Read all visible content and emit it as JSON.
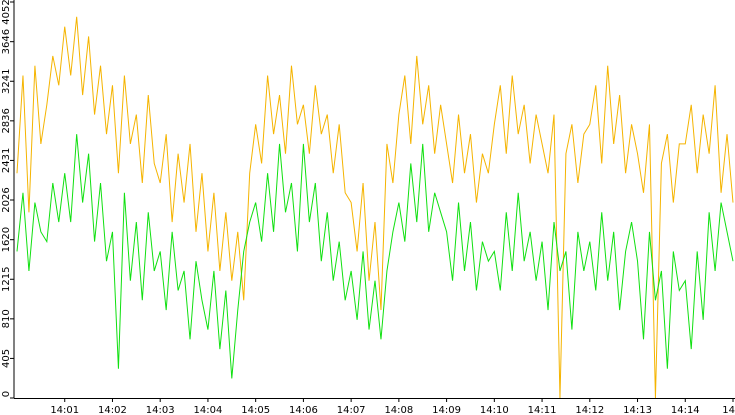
{
  "chart_data": {
    "type": "line",
    "categories": [
      null,
      null,
      null,
      null,
      null,
      null,
      null,
      null,
      "14:01",
      null,
      null,
      null,
      null,
      null,
      null,
      null,
      "14:02",
      null,
      null,
      null,
      null,
      null,
      null,
      null,
      "14:03",
      null,
      null,
      null,
      null,
      null,
      null,
      null,
      "14:04",
      null,
      null,
      null,
      null,
      null,
      null,
      null,
      "14:05",
      null,
      null,
      null,
      null,
      null,
      null,
      null,
      "14:06",
      null,
      null,
      null,
      null,
      null,
      null,
      null,
      "14:07",
      null,
      null,
      null,
      null,
      null,
      null,
      null,
      "14:08",
      null,
      null,
      null,
      null,
      null,
      null,
      null,
      "14:09",
      null,
      null,
      null,
      null,
      null,
      null,
      null,
      "14:10",
      null,
      null,
      null,
      null,
      null,
      null,
      null,
      "14:11",
      null,
      null,
      null,
      null,
      null,
      null,
      null,
      "14:12",
      null,
      null,
      null,
      null,
      null,
      null,
      null,
      "14:13",
      null,
      null,
      null,
      null,
      null,
      null,
      null,
      "14:14",
      null,
      null,
      null,
      null,
      null,
      null,
      null,
      "14"
    ],
    "series": [
      {
        "color": "#f5b400",
        "values": [
          2300,
          3300,
          1900,
          3400,
          2600,
          3000,
          3500,
          3200,
          3800,
          3300,
          3900,
          3100,
          3700,
          2900,
          3400,
          2700,
          3200,
          2300,
          3300,
          2600,
          2900,
          2200,
          3100,
          2400,
          2200,
          2700,
          1800,
          2500,
          2000,
          2600,
          1700,
          2300,
          1500,
          2100,
          1300,
          1900,
          1200,
          1700,
          1000,
          2300,
          2800,
          2400,
          3300,
          2700,
          3100,
          2500,
          3400,
          2800,
          3000,
          2500,
          3200,
          2700,
          2900,
          2300,
          2800,
          2100,
          2000,
          1500,
          2200,
          1200,
          1800,
          900,
          2600,
          2200,
          2900,
          3300,
          2600,
          3500,
          2800,
          3200,
          2500,
          3000,
          2600,
          2200,
          2900,
          2300,
          2700,
          2000,
          2500,
          2300,
          2800,
          3200,
          2500,
          3300,
          2700,
          3000,
          2400,
          2900,
          2600,
          2300,
          2900,
          0,
          2500,
          2800,
          2200,
          2700,
          2800,
          3200,
          2400,
          3400,
          2600,
          3100,
          2300,
          2800,
          2500,
          2100,
          2800,
          0,
          2400,
          2700,
          2000,
          2600,
          2600,
          3000,
          2300,
          2900,
          2500,
          3200,
          2100,
          2700,
          2000
        ]
      },
      {
        "color": "#10e010",
        "values": [
          1500,
          2100,
          1300,
          2000,
          1700,
          1600,
          2200,
          1800,
          2300,
          1800,
          2700,
          2000,
          2500,
          1600,
          2200,
          1400,
          1700,
          300,
          2100,
          1200,
          1800,
          1000,
          1900,
          1300,
          1500,
          900,
          1700,
          1100,
          1300,
          600,
          1400,
          1000,
          700,
          1300,
          500,
          1100,
          200,
          900,
          1500,
          1800,
          2000,
          1600,
          2300,
          1700,
          2600,
          1900,
          2200,
          1500,
          2600,
          1800,
          2200,
          1400,
          1900,
          1200,
          1600,
          1000,
          1300,
          800,
          1500,
          700,
          1200,
          600,
          1300,
          1700,
          2000,
          1600,
          2400,
          1800,
          2600,
          1700,
          2100,
          1900,
          1700,
          1200,
          2000,
          1300,
          1800,
          1100,
          1600,
          1400,
          1500,
          1100,
          1900,
          1300,
          2100,
          1400,
          1700,
          1200,
          1600,
          900,
          1800,
          1300,
          1500,
          700,
          1700,
          1300,
          1600,
          1100,
          1900,
          1200,
          1700,
          900,
          1500,
          1800,
          1400,
          600,
          1700,
          1000,
          1300,
          300,
          1500,
          1100,
          1200,
          500,
          1500,
          800,
          1900,
          1300,
          2000,
          1700,
          1400
        ]
      }
    ],
    "ylim": [
      0,
      4052
    ],
    "yticks": [
      0,
      405,
      810,
      1215,
      1620,
      2026,
      2431,
      2836,
      3241,
      3646,
      4052
    ]
  }
}
